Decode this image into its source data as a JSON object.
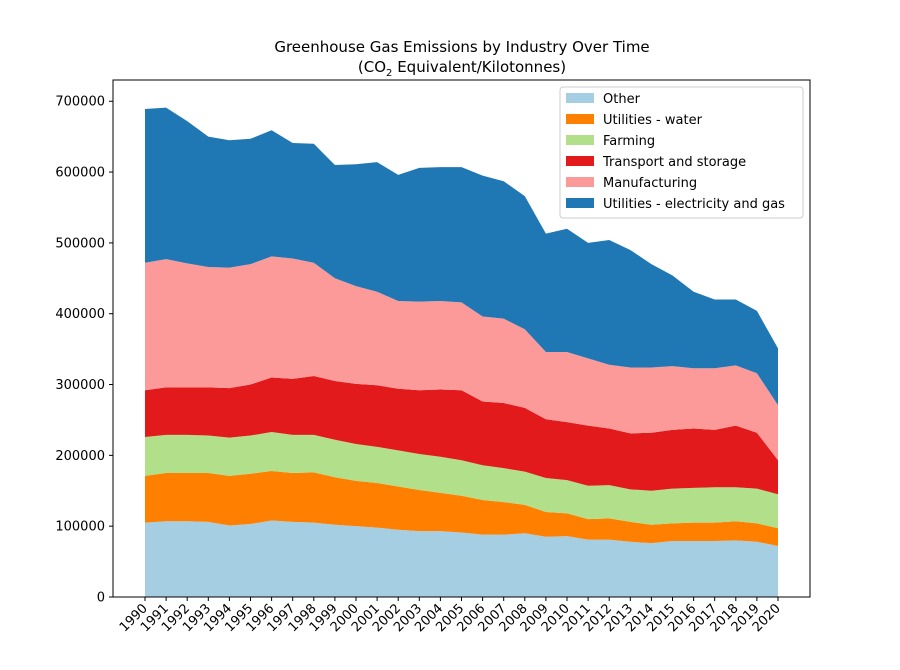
{
  "chart_data": {
    "type": "area",
    "stacked": true,
    "title": "Greenhouse Gas Emissions by Industry Over Time",
    "subtitle_pre": "(CO",
    "subtitle_sub": "2",
    "subtitle_post": " Equivalent/Kilotonnes)",
    "xlabel": "",
    "ylabel": "",
    "ylim": [
      0,
      730000
    ],
    "yticks": [
      0,
      100000,
      200000,
      300000,
      400000,
      500000,
      600000,
      700000
    ],
    "legend_position": "top-right",
    "x": [
      "1990",
      "1991",
      "1992",
      "1993",
      "1994",
      "1995",
      "1996",
      "1997",
      "1998",
      "1999",
      "2000",
      "2001",
      "2002",
      "2003",
      "2004",
      "2005",
      "2006",
      "2007",
      "2008",
      "2009",
      "2010",
      "2011",
      "2012",
      "2013",
      "2014",
      "2015",
      "2016",
      "2017",
      "2018",
      "2019",
      "2020"
    ],
    "series": [
      {
        "name": "Other",
        "color": "#a6cee3",
        "values": [
          105000,
          107000,
          107000,
          106000,
          101000,
          103000,
          108000,
          106000,
          105000,
          102000,
          100000,
          98000,
          95000,
          93000,
          93000,
          91000,
          88000,
          88000,
          90000,
          85000,
          86000,
          81000,
          81000,
          78000,
          76000,
          79000,
          79000,
          79000,
          80000,
          78000,
          72000
        ]
      },
      {
        "name": "Utilities - water",
        "color": "#ff7f00",
        "values": [
          66000,
          68000,
          68000,
          69000,
          70000,
          71000,
          70000,
          69000,
          71000,
          67000,
          64000,
          63000,
          61000,
          58000,
          54000,
          52000,
          49000,
          46000,
          40000,
          35000,
          32000,
          29000,
          30000,
          28000,
          26000,
          25000,
          26000,
          26000,
          27000,
          26000,
          25000
        ]
      },
      {
        "name": "Farming",
        "color": "#b2df8a",
        "values": [
          55000,
          54000,
          54000,
          53000,
          54000,
          54000,
          55000,
          54000,
          53000,
          53000,
          52000,
          51000,
          51000,
          51000,
          51000,
          50000,
          49000,
          48000,
          47000,
          48000,
          47000,
          47000,
          47000,
          46000,
          48000,
          49000,
          49000,
          50000,
          48000,
          49000,
          48000
        ]
      },
      {
        "name": "Transport and storage",
        "color": "#e31a1c",
        "values": [
          66000,
          67000,
          67000,
          68000,
          70000,
          72000,
          77000,
          79000,
          83000,
          83000,
          85000,
          87000,
          87000,
          90000,
          95000,
          99000,
          90000,
          92000,
          90000,
          83000,
          82000,
          85000,
          80000,
          79000,
          82000,
          83000,
          84000,
          81000,
          87000,
          79000,
          48000
        ]
      },
      {
        "name": "Manufacturing",
        "color": "#fb9a99",
        "values": [
          180000,
          181000,
          175000,
          170000,
          170000,
          170000,
          171000,
          170000,
          160000,
          145000,
          138000,
          132000,
          124000,
          125000,
          125000,
          124000,
          120000,
          119000,
          111000,
          95000,
          99000,
          95000,
          90000,
          93000,
          92000,
          90000,
          85000,
          87000,
          85000,
          84000,
          78000
        ]
      },
      {
        "name": "Utilities - electricity and gas",
        "color": "#1f78b4",
        "values": [
          217000,
          214000,
          201000,
          184000,
          180000,
          177000,
          178000,
          163000,
          168000,
          160000,
          172000,
          183000,
          178000,
          189000,
          189000,
          191000,
          199000,
          194000,
          188000,
          167000,
          174000,
          163000,
          176000,
          166000,
          146000,
          128000,
          108000,
          97000,
          93000,
          88000,
          80000
        ]
      }
    ]
  }
}
